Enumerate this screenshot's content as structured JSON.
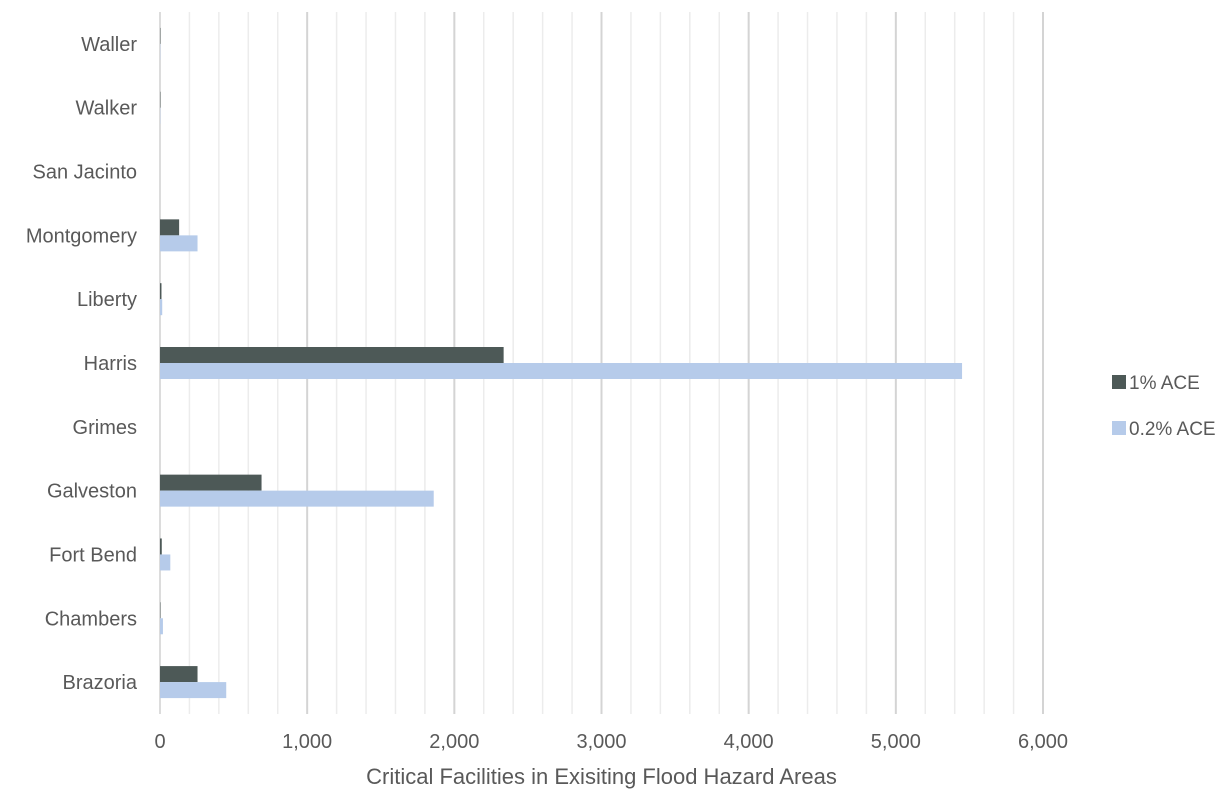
{
  "chart_data": {
    "type": "bar",
    "orientation": "horizontal",
    "categories": [
      "Brazoria",
      "Chambers",
      "Fort Bend",
      "Galveston",
      "Grimes",
      "Harris",
      "Liberty",
      "Montgomery",
      "San Jacinto",
      "Walker",
      "Waller"
    ],
    "series": [
      {
        "name": "1% ACE",
        "color": "#4d5957",
        "values": [
          255,
          3,
          12,
          690,
          0,
          2335,
          10,
          130,
          0,
          3,
          3
        ]
      },
      {
        "name": "0.2% ACE",
        "color": "#b6cbea",
        "values": [
          450,
          20,
          70,
          1860,
          0,
          5450,
          15,
          255,
          0,
          2,
          2
        ]
      }
    ],
    "xlabel": "Critical Facilities in Exisiting Flood Hazard Areas",
    "ylabel": "",
    "xlim": [
      0,
      6000
    ],
    "x_ticks": [
      0,
      1000,
      2000,
      3000,
      4000,
      5000,
      6000
    ],
    "x_tick_labels": [
      "0",
      "1,000",
      "2,000",
      "3,000",
      "4,000",
      "5,000",
      "6,000"
    ],
    "minor_gridline_step": 200,
    "grid": true,
    "legend_position": "right"
  }
}
